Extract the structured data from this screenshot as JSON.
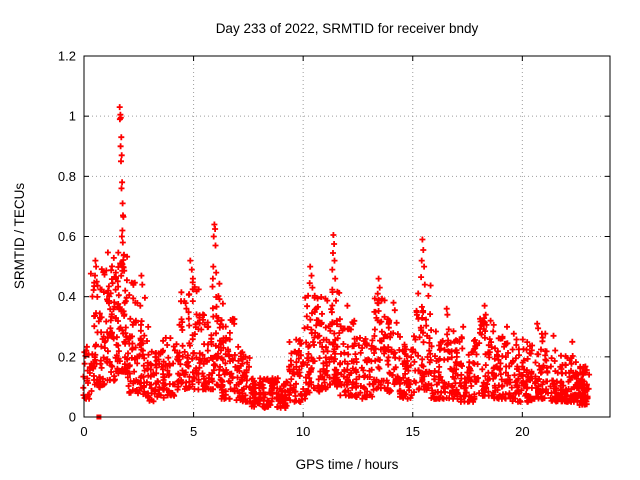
{
  "chart_data": {
    "type": "scatter",
    "title": "Day 233 of 2022, SRMTID for receiver bndy",
    "xlabel": "GPS time / hours",
    "ylabel": "SRMTID / TECUs",
    "xlim": [
      0,
      24
    ],
    "ylim": [
      0,
      1.2
    ],
    "xticks": {
      "values": [
        0,
        5,
        10,
        15,
        20
      ],
      "labels": [
        "0",
        "5",
        "10",
        "15",
        "20"
      ]
    },
    "yticks": {
      "values": [
        0,
        0.2,
        0.4,
        0.6,
        0.8,
        1.0,
        1.2
      ],
      "labels": [
        "0",
        "0.2",
        "0.4",
        "0.6",
        "0.8",
        "1",
        "1.2"
      ]
    },
    "grid": true,
    "grid_color": "#9e9e9e",
    "border_color": "#000000",
    "marker": "plus",
    "marker_color": "#ff0000",
    "seed": 42,
    "special_point": {
      "x": 0.68,
      "y": 0.0,
      "marker": "filled-square",
      "color": "#ff0000"
    },
    "segments": [
      [
        0.0,
        0.3,
        22,
        0.06,
        0.25,
        1.6
      ],
      [
        0.3,
        0.7,
        40,
        0.08,
        0.48,
        1.3
      ],
      [
        0.7,
        1.1,
        38,
        0.1,
        0.5,
        1.4
      ],
      [
        1.1,
        1.6,
        62,
        0.12,
        0.55,
        1.5
      ],
      [
        1.6,
        1.9,
        45,
        0.15,
        0.55,
        1.3
      ],
      [
        1.9,
        2.4,
        55,
        0.08,
        0.46,
        1.5
      ],
      [
        2.4,
        2.9,
        45,
        0.07,
        0.42,
        1.6
      ],
      [
        2.9,
        3.6,
        48,
        0.05,
        0.22,
        1.4
      ],
      [
        3.6,
        4.3,
        50,
        0.07,
        0.27,
        1.5
      ],
      [
        4.3,
        4.8,
        42,
        0.09,
        0.42,
        1.5
      ],
      [
        4.8,
        5.3,
        45,
        0.09,
        0.45,
        1.6
      ],
      [
        5.3,
        5.85,
        48,
        0.09,
        0.36,
        1.4
      ],
      [
        5.85,
        6.3,
        50,
        0.1,
        0.45,
        1.4
      ],
      [
        6.3,
        7.0,
        55,
        0.06,
        0.33,
        1.6
      ],
      [
        7.0,
        7.6,
        48,
        0.05,
        0.22,
        1.5
      ],
      [
        7.6,
        9.4,
        150,
        0.03,
        0.13,
        1.2
      ],
      [
        9.4,
        10.1,
        60,
        0.05,
        0.26,
        1.5
      ],
      [
        10.1,
        10.7,
        55,
        0.08,
        0.42,
        1.5
      ],
      [
        10.7,
        11.2,
        48,
        0.09,
        0.4,
        1.4
      ],
      [
        11.2,
        11.7,
        50,
        0.1,
        0.44,
        1.4
      ],
      [
        11.7,
        12.4,
        58,
        0.07,
        0.33,
        1.6
      ],
      [
        12.4,
        13.1,
        55,
        0.06,
        0.28,
        1.5
      ],
      [
        13.1,
        13.7,
        50,
        0.09,
        0.4,
        1.5
      ],
      [
        13.7,
        14.4,
        55,
        0.08,
        0.36,
        1.5
      ],
      [
        14.4,
        15.1,
        55,
        0.06,
        0.27,
        1.5
      ],
      [
        15.1,
        15.8,
        55,
        0.09,
        0.44,
        1.4
      ],
      [
        15.8,
        17.0,
        90,
        0.06,
        0.3,
        1.7
      ],
      [
        17.0,
        18.0,
        80,
        0.05,
        0.27,
        1.6
      ],
      [
        18.0,
        18.7,
        60,
        0.07,
        0.33,
        1.6
      ],
      [
        18.7,
        19.6,
        70,
        0.06,
        0.28,
        1.7
      ],
      [
        19.6,
        20.4,
        65,
        0.05,
        0.26,
        1.6
      ],
      [
        20.4,
        21.1,
        60,
        0.06,
        0.29,
        1.6
      ],
      [
        21.1,
        22.0,
        75,
        0.05,
        0.23,
        1.6
      ],
      [
        22.0,
        22.6,
        65,
        0.05,
        0.21,
        1.5
      ],
      [
        22.6,
        23.0,
        60,
        0.04,
        0.17,
        1.3
      ]
    ],
    "peaks": [
      [
        0.52,
        0.52
      ],
      [
        0.55,
        0.5
      ],
      [
        0.5,
        0.47
      ],
      [
        0.58,
        0.45
      ],
      [
        1.63,
        1.03
      ],
      [
        1.66,
        1.005
      ],
      [
        1.64,
        0.99
      ],
      [
        1.68,
        0.995
      ],
      [
        1.7,
        0.93
      ],
      [
        1.67,
        0.9
      ],
      [
        1.72,
        0.87
      ],
      [
        1.69,
        0.85
      ],
      [
        1.74,
        0.78
      ],
      [
        1.71,
        0.76
      ],
      [
        1.76,
        0.71
      ],
      [
        1.78,
        0.67
      ],
      [
        1.8,
        0.665
      ],
      [
        1.75,
        0.62
      ],
      [
        1.73,
        0.6
      ],
      [
        1.77,
        0.58
      ],
      [
        2.62,
        0.47
      ],
      [
        2.66,
        0.44
      ],
      [
        4.85,
        0.52
      ],
      [
        4.92,
        0.49
      ],
      [
        4.97,
        0.46
      ],
      [
        5.95,
        0.64
      ],
      [
        5.98,
        0.625
      ],
      [
        5.92,
        0.6
      ],
      [
        6.0,
        0.57
      ],
      [
        5.9,
        0.5
      ],
      [
        6.03,
        0.48
      ],
      [
        5.88,
        0.46
      ],
      [
        10.32,
        0.5
      ],
      [
        10.38,
        0.47
      ],
      [
        10.3,
        0.445
      ],
      [
        10.42,
        0.43
      ],
      [
        11.38,
        0.605
      ],
      [
        11.41,
        0.575
      ],
      [
        11.36,
        0.545
      ],
      [
        11.43,
        0.52
      ],
      [
        11.33,
        0.49
      ],
      [
        11.46,
        0.46
      ],
      [
        12.02,
        0.37
      ],
      [
        13.44,
        0.46
      ],
      [
        13.49,
        0.43
      ],
      [
        13.4,
        0.41
      ],
      [
        14.12,
        0.38
      ],
      [
        14.18,
        0.355
      ],
      [
        15.44,
        0.59
      ],
      [
        15.48,
        0.555
      ],
      [
        15.41,
        0.52
      ],
      [
        15.52,
        0.5
      ],
      [
        15.38,
        0.465
      ],
      [
        15.55,
        0.44
      ],
      [
        16.55,
        0.36
      ],
      [
        16.58,
        0.34
      ],
      [
        17.3,
        0.3
      ],
      [
        18.28,
        0.37
      ],
      [
        18.33,
        0.34
      ],
      [
        19.3,
        0.3
      ],
      [
        20.68,
        0.31
      ],
      [
        20.72,
        0.295
      ],
      [
        21.42,
        0.27
      ],
      [
        22.28,
        0.25
      ]
    ]
  }
}
